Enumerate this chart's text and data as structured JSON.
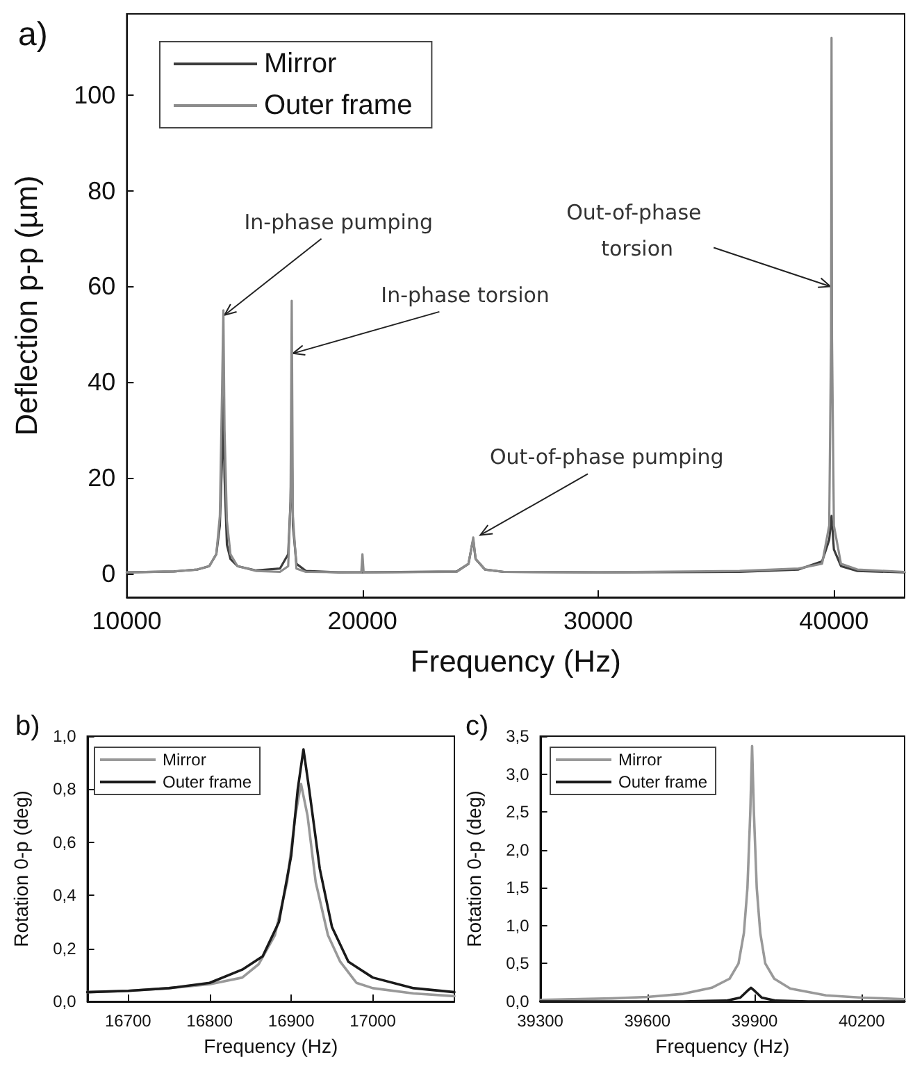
{
  "chart_data": [
    {
      "type": "line",
      "title": "a)",
      "xlabel": "Frequency (Hz)",
      "ylabel": "Deflection p-p (µm)",
      "xlim": [
        10000,
        43000
      ],
      "ylim": [
        -5,
        117
      ],
      "xticks": [
        10000,
        20000,
        30000,
        40000
      ],
      "yticks": [
        0,
        20,
        40,
        60,
        80,
        100
      ],
      "grid": false,
      "legend": "top left",
      "marker": "none",
      "line_style": "solid",
      "annotations": [
        {
          "text": "In-phase pumping",
          "x": 14150,
          "y": 54
        },
        {
          "text": "In-phase torsion",
          "x": 17050,
          "y": 46
        },
        {
          "text": "Out-of-phase pumping",
          "x": 25000,
          "y": 8
        },
        {
          "text": "Out-of-phase torsion",
          "x": 39850,
          "y": 60
        }
      ],
      "series": [
        {
          "name": "Mirror",
          "color": "#3c3c3c",
          "x": [
            10000,
            12000,
            13000,
            13500,
            13800,
            13950,
            14050,
            14100,
            14150,
            14250,
            14400,
            14700,
            15500,
            16500,
            16850,
            16950,
            17000,
            17050,
            17200,
            17600,
            19000,
            20000,
            24000,
            24500,
            24650,
            24700,
            24800,
            25200,
            26000,
            30000,
            36000,
            38500,
            39500,
            39800,
            39900,
            40000,
            40300,
            41000,
            43000
          ],
          "values": [
            0.2,
            0.4,
            0.8,
            1.5,
            4,
            10,
            25,
            37,
            20,
            6,
            3,
            1.5,
            0.6,
            1,
            4,
            15,
            28,
            10,
            2,
            0.5,
            0.2,
            0.2,
            0.4,
            2,
            6,
            7,
            3,
            0.8,
            0.3,
            0.2,
            0.3,
            0.8,
            2.5,
            7,
            12,
            5,
            1.5,
            0.5,
            0.2
          ]
        },
        {
          "name": "Outer frame",
          "color": "#8c8c8c",
          "x": [
            10000,
            12000,
            13000,
            13500,
            13800,
            13950,
            14050,
            14100,
            14150,
            14250,
            14400,
            14700,
            15500,
            16500,
            16850,
            16950,
            17000,
            17050,
            17200,
            17600,
            19950,
            20000,
            20050,
            24000,
            24500,
            24650,
            24700,
            24800,
            25200,
            26000,
            30000,
            36000,
            38500,
            39500,
            39800,
            39880,
            39900,
            39920,
            40000,
            40300,
            41000,
            43000
          ],
          "values": [
            0.2,
            0.4,
            0.8,
            1.5,
            4,
            12,
            40,
            55,
            30,
            11,
            4,
            1.5,
            0.5,
            0.3,
            1.5,
            15,
            57,
            12,
            1,
            0.3,
            0.2,
            4,
            0.2,
            0.3,
            2,
            6,
            7.5,
            3,
            0.8,
            0.3,
            0.2,
            0.5,
            1,
            2,
            10,
            49,
            112,
            49,
            10,
            2,
            0.8,
            0.3
          ]
        }
      ]
    },
    {
      "type": "line",
      "title": "b)",
      "xlabel": "Frequency (Hz)",
      "ylabel": "Rotation 0-p (deg)",
      "xlim": [
        16650,
        17100
      ],
      "ylim": [
        0,
        1
      ],
      "xticks": [
        16700,
        16800,
        16900,
        17000
      ],
      "yticks": [
        {
          "value": 0,
          "label": "0,0"
        },
        {
          "value": 0.2,
          "label": "0,2"
        },
        {
          "value": 0.4,
          "label": "0,4"
        },
        {
          "value": 0.6,
          "label": "0,6"
        },
        {
          "value": 0.8,
          "label": "0,8"
        },
        {
          "value": 1,
          "label": "1,0"
        }
      ],
      "grid": false,
      "legend": "top left",
      "marker": "none",
      "line_style": "solid",
      "series": [
        {
          "name": "Mirror",
          "color": "#999999",
          "x": [
            16650,
            16700,
            16750,
            16800,
            16840,
            16860,
            16880,
            16895,
            16905,
            16912,
            16920,
            16930,
            16945,
            16960,
            16980,
            17000,
            17050,
            17100
          ],
          "values": [
            0.035,
            0.04,
            0.05,
            0.065,
            0.09,
            0.14,
            0.25,
            0.45,
            0.7,
            0.82,
            0.7,
            0.45,
            0.25,
            0.15,
            0.07,
            0.05,
            0.03,
            0.02
          ]
        },
        {
          "name": "Outer frame",
          "color": "#1a1a1a",
          "x": [
            16650,
            16700,
            16750,
            16800,
            16840,
            16865,
            16885,
            16900,
            16908,
            16915,
            16922,
            16935,
            16950,
            16970,
            17000,
            17050,
            17100
          ],
          "values": [
            0.035,
            0.04,
            0.05,
            0.07,
            0.12,
            0.17,
            0.3,
            0.55,
            0.8,
            0.95,
            0.8,
            0.5,
            0.28,
            0.15,
            0.09,
            0.05,
            0.035
          ]
        }
      ]
    },
    {
      "type": "line",
      "title": "c)",
      "xlabel": "Frequency (Hz)",
      "ylabel": "Rotation 0-p (deg)",
      "xlim": [
        39300,
        40320
      ],
      "ylim": [
        0,
        3.5
      ],
      "xticks": [
        39300,
        39600,
        39900,
        40200
      ],
      "yticks": [
        {
          "value": 0,
          "label": "0,0"
        },
        {
          "value": 0.5,
          "label": "0,5"
        },
        {
          "value": 1,
          "label": "1,0"
        },
        {
          "value": 1.5,
          "label": "1,5"
        },
        {
          "value": 2,
          "label": "2,0"
        },
        {
          "value": 2.5,
          "label": "2,5"
        },
        {
          "value": 3,
          "label": "3,0"
        },
        {
          "value": 3.5,
          "label": "3,5"
        }
      ],
      "grid": false,
      "legend": "top left",
      "marker": "none",
      "line_style": "solid",
      "series": [
        {
          "name": "Mirror",
          "color": "#999999",
          "x": [
            39300,
            39500,
            39600,
            39700,
            39780,
            39830,
            39855,
            39870,
            39880,
            39888,
            39893,
            39898,
            39906,
            39916,
            39930,
            39955,
            40000,
            40100,
            40200,
            40320
          ],
          "values": [
            0.02,
            0.04,
            0.06,
            0.1,
            0.18,
            0.3,
            0.5,
            0.9,
            1.5,
            2.5,
            3.37,
            2.5,
            1.5,
            0.9,
            0.5,
            0.3,
            0.17,
            0.08,
            0.05,
            0.03
          ]
        },
        {
          "name": "Outer frame",
          "color": "#1a1a1a",
          "x": [
            39300,
            39700,
            39820,
            39860,
            39880,
            39890,
            39900,
            39920,
            39960,
            40050,
            40320
          ],
          "values": [
            0,
            0,
            0.01,
            0.05,
            0.14,
            0.18,
            0.14,
            0.05,
            0.01,
            0,
            0
          ]
        }
      ]
    }
  ]
}
